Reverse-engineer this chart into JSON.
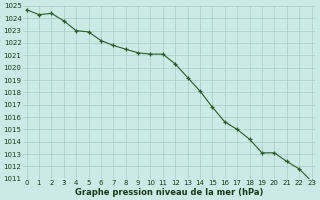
{
  "x": [
    0,
    1,
    2,
    3,
    4,
    5,
    6,
    7,
    8,
    9,
    10,
    11,
    12,
    13,
    14,
    15,
    16,
    17,
    18,
    19,
    20,
    21,
    22,
    23
  ],
  "y": [
    1024.7,
    1024.3,
    1024.4,
    1023.8,
    1023.0,
    1022.9,
    1022.2,
    1021.8,
    1021.5,
    1021.2,
    1021.1,
    1021.1,
    1020.3,
    1019.2,
    1018.1,
    1016.8,
    1015.6,
    1015.0,
    1014.2,
    1013.1,
    1013.1,
    1012.4,
    1011.8,
    1010.8
  ],
  "line_color": "#2d5a27",
  "marker": "+",
  "marker_size": 3,
  "line_width": 0.8,
  "bg_color": "#cceae5",
  "grid_color": "#a8ccc8",
  "xlabel": "Graphe pression niveau de la mer (hPa)",
  "xlabel_color": "#1a3a18",
  "tick_color": "#1a3a18",
  "ylim": [
    1011,
    1025
  ],
  "xlim_min": -0.3,
  "xlim_max": 23.3,
  "yticks": [
    1011,
    1012,
    1013,
    1014,
    1015,
    1016,
    1017,
    1018,
    1019,
    1020,
    1021,
    1022,
    1023,
    1024,
    1025
  ],
  "xticks": [
    0,
    1,
    2,
    3,
    4,
    5,
    6,
    7,
    8,
    9,
    10,
    11,
    12,
    13,
    14,
    15,
    16,
    17,
    18,
    19,
    20,
    21,
    22,
    23
  ],
  "tick_fontsize": 5,
  "xlabel_fontsize": 6,
  "xlabel_fontweight": "bold"
}
